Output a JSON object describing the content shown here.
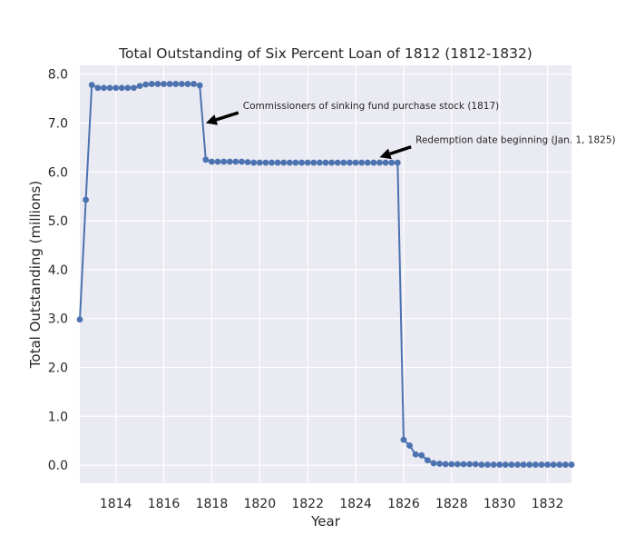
{
  "chart_data": {
    "type": "line",
    "title": "Total Outstanding of Six Percent Loan of 1812 (1812-1832)",
    "xlabel": "Year",
    "ylabel": "Total Outstanding (millions)",
    "xlim": [
      1812.5,
      1833.0
    ],
    "ylim": [
      -0.37,
      8.18
    ],
    "grid": true,
    "x_ticks": [
      1814,
      1816,
      1818,
      1820,
      1822,
      1824,
      1826,
      1828,
      1830,
      1832
    ],
    "y_ticks": [
      0,
      1,
      2,
      3,
      4,
      5,
      6,
      7,
      8
    ],
    "y_tick_labels": [
      "0.0",
      "1.0",
      "2.0",
      "3.0",
      "4.0",
      "5.0",
      "6.0",
      "7.0",
      "8.0"
    ],
    "colors": {
      "series": "#4c72b0",
      "plot_background": "#eaeaf2",
      "grid": "#ffffff",
      "text": "#262626",
      "arrow": "#000000"
    },
    "series": [
      {
        "x": [
          1812.5,
          1812.75,
          1813.0,
          1813.25,
          1813.5,
          1813.75,
          1814.0,
          1814.25,
          1814.5,
          1814.75,
          1815.0,
          1815.25,
          1815.5,
          1815.75,
          1816.0,
          1816.25,
          1816.5,
          1816.75,
          1817.0,
          1817.25,
          1817.5,
          1817.75,
          1818.0,
          1818.25,
          1818.5,
          1818.75,
          1819.0,
          1819.25,
          1819.5,
          1819.75,
          1820.0,
          1820.25,
          1820.5,
          1820.75,
          1821.0,
          1821.25,
          1821.5,
          1821.75,
          1822.0,
          1822.25,
          1822.5,
          1822.75,
          1823.0,
          1823.25,
          1823.5,
          1823.75,
          1824.0,
          1824.25,
          1824.5,
          1824.75,
          1825.0,
          1825.25,
          1825.5,
          1825.75,
          1826.0,
          1826.25,
          1826.5,
          1826.75,
          1827.0,
          1827.25,
          1827.5,
          1827.75,
          1828.0,
          1828.25,
          1828.5,
          1828.75,
          1829.0,
          1829.25,
          1829.5,
          1829.75,
          1830.0,
          1830.25,
          1830.5,
          1830.75,
          1831.0,
          1831.25,
          1831.5,
          1831.75,
          1832.0,
          1832.25,
          1832.5,
          1832.75,
          1833.0
        ],
        "y": [
          2.98,
          5.43,
          7.78,
          7.72,
          7.72,
          7.72,
          7.72,
          7.72,
          7.72,
          7.72,
          7.76,
          7.79,
          7.8,
          7.8,
          7.8,
          7.8,
          7.8,
          7.8,
          7.8,
          7.8,
          7.77,
          6.25,
          6.21,
          6.21,
          6.21,
          6.21,
          6.21,
          6.21,
          6.2,
          6.19,
          6.19,
          6.19,
          6.19,
          6.19,
          6.19,
          6.19,
          6.19,
          6.19,
          6.19,
          6.19,
          6.19,
          6.19,
          6.19,
          6.19,
          6.19,
          6.19,
          6.19,
          6.19,
          6.19,
          6.19,
          6.19,
          6.19,
          6.19,
          6.19,
          0.52,
          0.4,
          0.22,
          0.2,
          0.1,
          0.04,
          0.03,
          0.02,
          0.02,
          0.02,
          0.02,
          0.02,
          0.02,
          0.01,
          0.01,
          0.01,
          0.01,
          0.01,
          0.01,
          0.01,
          0.01,
          0.01,
          0.01,
          0.01,
          0.01,
          0.01,
          0.01,
          0.01,
          0.01
        ]
      }
    ],
    "annotations": [
      {
        "text": "Commissioners of sinking fund purchase stock (1817)",
        "xy": [
          1817.75,
          7.0
        ],
        "xytext": [
          1819.3,
          7.25
        ]
      },
      {
        "text": "Redemption date beginning (Jan. 1, 1825)",
        "xy": [
          1825.0,
          6.3
        ],
        "xytext": [
          1826.5,
          6.55
        ]
      }
    ]
  }
}
